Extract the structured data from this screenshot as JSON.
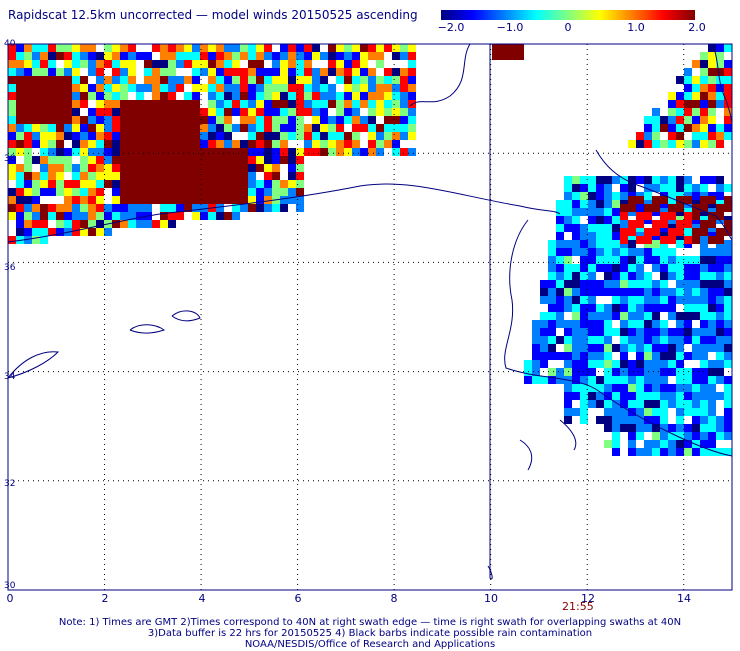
{
  "title": "Rapidscat 12.5km uncorrected — model winds 20150525 ascending",
  "colorbar": {
    "ticks": [
      "−2.0",
      "−1.0",
      "0",
      "1.0",
      "2.0"
    ],
    "tick_values": [
      -2.0,
      -1.0,
      0,
      1.0,
      2.0
    ],
    "colors": [
      "#000080",
      "#0000ff",
      "#0080ff",
      "#00ffff",
      "#80ff80",
      "#ffff00",
      "#ff8000",
      "#ff0000",
      "#800000"
    ]
  },
  "axes": {
    "x_ticks": [
      "0",
      "2",
      "4",
      "6",
      "8",
      "10",
      "12",
      "14"
    ],
    "x_values": [
      0,
      2,
      4,
      6,
      8,
      10,
      12,
      14
    ],
    "y_ticks": [
      "40",
      "38",
      "36",
      "34",
      "32",
      "30"
    ],
    "y_values": [
      40,
      38,
      36,
      34,
      32,
      30
    ],
    "xlim": [
      0,
      15
    ],
    "ylim": [
      30,
      40
    ],
    "grid": "dotted"
  },
  "time_label": "21:55",
  "notes": [
    "Note: 1) Times are GMT 2)Times correspond to 40N at right swath edge — time is right swath for overlapping swaths at 40N",
    "3)Data buffer is 22 hrs for 20150525 4) Black barbs indicate possible rain contamination",
    "NOAA/NESDIS/Office of Research and Applications"
  ]
}
